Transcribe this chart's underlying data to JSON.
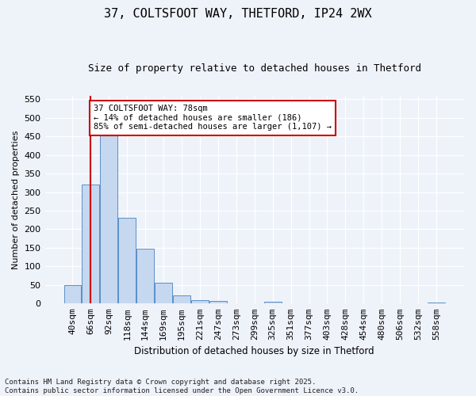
{
  "title1": "37, COLTSFOOT WAY, THETFORD, IP24 2WX",
  "title2": "Size of property relative to detached houses in Thetford",
  "xlabel": "Distribution of detached houses by size in Thetford",
  "ylabel": "Number of detached properties",
  "categories": [
    "40sqm",
    "66sqm",
    "92sqm",
    "118sqm",
    "144sqm",
    "169sqm",
    "195sqm",
    "221sqm",
    "247sqm",
    "273sqm",
    "299sqm",
    "325sqm",
    "351sqm",
    "377sqm",
    "403sqm",
    "428sqm",
    "454sqm",
    "480sqm",
    "506sqm",
    "532sqm",
    "558sqm"
  ],
  "values": [
    50,
    320,
    455,
    230,
    148,
    55,
    22,
    10,
    8,
    0,
    0,
    5,
    0,
    0,
    0,
    0,
    0,
    0,
    0,
    0,
    3
  ],
  "bar_color": "#c5d8f0",
  "bar_edge_color": "#5b8fc7",
  "vline_x_index": 1,
  "vline_color": "#cc0000",
  "ylim": [
    0,
    560
  ],
  "yticks": [
    0,
    50,
    100,
    150,
    200,
    250,
    300,
    350,
    400,
    450,
    500,
    550
  ],
  "annotation_text": "37 COLTSFOOT WAY: 78sqm\n← 14% of detached houses are smaller (186)\n85% of semi-detached houses are larger (1,107) →",
  "annotation_box_color": "#ffffff",
  "annotation_box_edge": "#cc0000",
  "footer": "Contains HM Land Registry data © Crown copyright and database right 2025.\nContains public sector information licensed under the Open Government Licence v3.0.",
  "background_color": "#eef2f9",
  "plot_bg_color": "#eef2f9",
  "grid_color": "#ffffff",
  "title1_fontsize": 11,
  "title2_fontsize": 9,
  "ylabel_fontsize": 8,
  "xlabel_fontsize": 8.5,
  "tick_fontsize": 8,
  "footer_fontsize": 6.5,
  "ann_fontsize": 7.5
}
